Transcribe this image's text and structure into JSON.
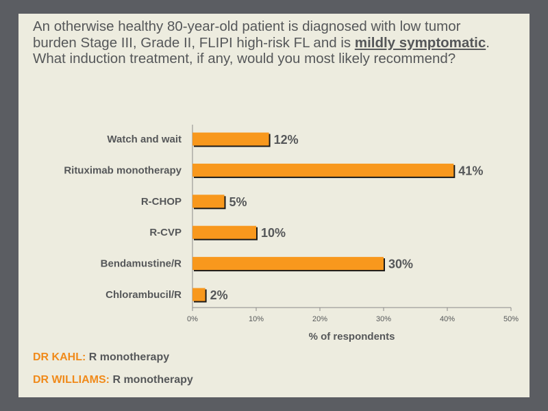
{
  "question": {
    "part1": "An otherwise healthy 80-year-old patient is diagnosed with low tumor burden Stage III, Grade II, FLIPI high-risk FL and is ",
    "emphasis": "mildly symptomatic",
    "part2": ". What induction treatment, if any, would you most likely recommend?"
  },
  "chart_data": {
    "type": "bar",
    "orientation": "horizontal",
    "categories": [
      "Watch and wait",
      "Rituximab monotherapy",
      "R-CHOP",
      "R-CVP",
      "Bendamustine/R",
      "Chlorambucil/R"
    ],
    "values": [
      12,
      41,
      5,
      10,
      30,
      2
    ],
    "value_labels": [
      "12%",
      "41%",
      "5%",
      "10%",
      "30%",
      "2%"
    ],
    "xticks": [
      0,
      10,
      20,
      30,
      40,
      50
    ],
    "xtick_labels": [
      "0%",
      "10%",
      "20%",
      "30%",
      "40%",
      "50%"
    ],
    "xlabel": "% of respondents",
    "xlim": [
      0,
      50
    ],
    "grid": false,
    "bar_color": "#f8981d"
  },
  "experts": [
    {
      "name": "DR KAHL:",
      "answer": "R monotherapy"
    },
    {
      "name": "DR WILLIAMS:",
      "answer": "R monotherapy"
    }
  ],
  "colors": {
    "background": "#5b5d62",
    "slide": "#edecdf",
    "text": "#555759",
    "accent": "#f08a1a"
  }
}
